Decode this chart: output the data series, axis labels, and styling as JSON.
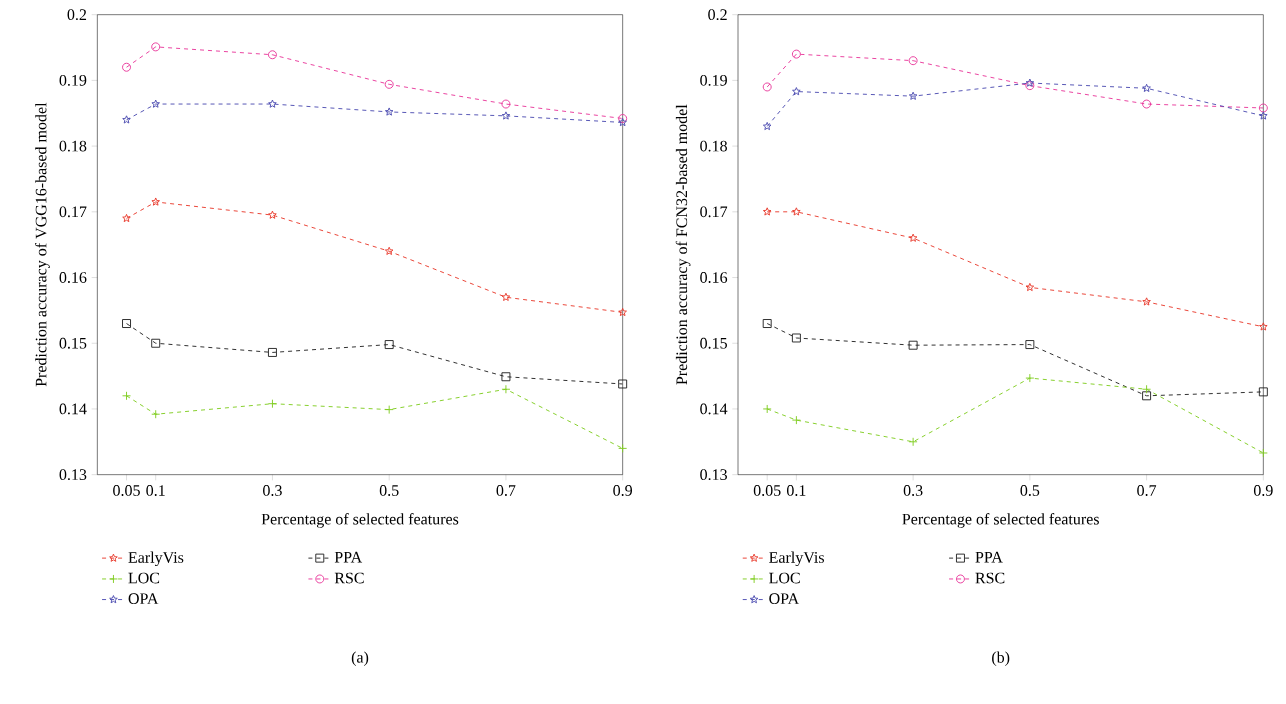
{
  "chart_data": [
    {
      "type": "line",
      "xlabel": "Percentage of selected features",
      "ylabel": "Prediction accuracy of VGG16-based model",
      "x": [
        0.05,
        0.1,
        0.3,
        0.5,
        0.7,
        0.9
      ],
      "xlim": [
        0,
        0.9
      ],
      "xticks": [
        0.05,
        0.1,
        0.3,
        0.5,
        0.7,
        0.9
      ],
      "ylim": [
        0.13,
        0.2
      ],
      "yticks": [
        0.13,
        0.14,
        0.15,
        0.16,
        0.17,
        0.18,
        0.19,
        0.2
      ],
      "line_style": "dashed",
      "grid": false,
      "legend": "bottom",
      "annotations": [
        "(a)"
      ],
      "series": [
        {
          "name": "EarlyVis",
          "color": "#e8392b",
          "marker": "star",
          "values": [
            0.169,
            0.1715,
            0.1695,
            0.164,
            0.157,
            0.1547
          ]
        },
        {
          "name": "PPA",
          "color": "#222222",
          "marker": "square",
          "values": [
            0.153,
            0.15,
            0.1486,
            0.1498,
            0.1449,
            0.1438
          ]
        },
        {
          "name": "LOC",
          "color": "#7fcc1f",
          "marker": "cross",
          "values": [
            0.142,
            0.1392,
            0.1408,
            0.1399,
            0.143,
            0.134
          ]
        },
        {
          "name": "RSC",
          "color": "#e8379a",
          "marker": "circle",
          "values": [
            0.192,
            0.1951,
            0.1939,
            0.1894,
            0.1864,
            0.1842
          ]
        },
        {
          "name": "OPA",
          "color": "#4b4bb0",
          "marker": "star",
          "values": [
            0.184,
            0.1864,
            0.1864,
            0.1852,
            0.1846,
            0.1836
          ]
        }
      ]
    },
    {
      "type": "line",
      "xlabel": "Percentage of selected features",
      "ylabel": "Prediction accuracy of FCN32-based model",
      "x": [
        0.05,
        0.1,
        0.3,
        0.5,
        0.7,
        0.9
      ],
      "xlim": [
        0,
        0.9
      ],
      "xticks": [
        0.05,
        0.1,
        0.3,
        0.5,
        0.7,
        0.9
      ],
      "ylim": [
        0.13,
        0.2
      ],
      "yticks": [
        0.13,
        0.14,
        0.15,
        0.16,
        0.17,
        0.18,
        0.19,
        0.2
      ],
      "line_style": "dashed",
      "grid": false,
      "legend": "bottom",
      "annotations": [
        "(b)"
      ],
      "series": [
        {
          "name": "EarlyVis",
          "color": "#e8392b",
          "marker": "star",
          "values": [
            0.17,
            0.17,
            0.166,
            0.1585,
            0.1563,
            0.1525
          ]
        },
        {
          "name": "PPA",
          "color": "#222222",
          "marker": "square",
          "values": [
            0.153,
            0.1508,
            0.1497,
            0.1498,
            0.142,
            0.1426
          ]
        },
        {
          "name": "LOC",
          "color": "#7fcc1f",
          "marker": "cross",
          "values": [
            0.14,
            0.1383,
            0.135,
            0.1447,
            0.143,
            0.1333
          ]
        },
        {
          "name": "RSC",
          "color": "#e8379a",
          "marker": "circle",
          "values": [
            0.189,
            0.194,
            0.193,
            0.1892,
            0.1864,
            0.1858
          ]
        },
        {
          "name": "OPA",
          "color": "#4b4bb0",
          "marker": "star",
          "values": [
            0.183,
            0.1883,
            0.1876,
            0.1896,
            0.1888,
            0.1846
          ]
        }
      ]
    }
  ]
}
